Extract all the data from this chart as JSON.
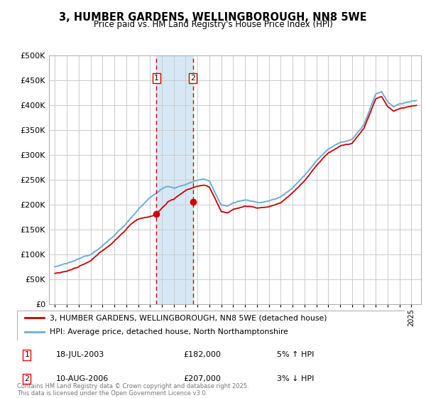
{
  "title_line1": "3, HUMBER GARDENS, WELLINGBOROUGH, NN8 5WE",
  "title_line2": "Price paid vs. HM Land Registry's House Price Index (HPI)",
  "legend_line1": "3, HUMBER GARDENS, WELLINGBOROUGH, NN8 5WE (detached house)",
  "legend_line2": "HPI: Average price, detached house, North Northamptonshire",
  "footer": "Contains HM Land Registry data © Crown copyright and database right 2025.\nThis data is licensed under the Open Government Licence v3.0.",
  "sale1_date": "18-JUL-2003",
  "sale1_price": "£182,000",
  "sale1_hpi": "5% ↑ HPI",
  "sale2_date": "10-AUG-2006",
  "sale2_price": "£207,000",
  "sale2_hpi": "3% ↓ HPI",
  "sale1_x": 2003.54,
  "sale2_x": 2006.61,
  "sale1_y": 182000,
  "sale2_y": 207000,
  "ylim_min": 0,
  "ylim_max": 500000,
  "xlim_min": 1994.5,
  "xlim_max": 2025.8,
  "hpi_color": "#6baed6",
  "price_color": "#cc0000",
  "background_color": "#ffffff",
  "grid_color": "#cccccc",
  "highlight_fill": "#d6e8f5",
  "yticks": [
    0,
    50000,
    100000,
    150000,
    200000,
    250000,
    300000,
    350000,
    400000,
    450000,
    500000
  ]
}
